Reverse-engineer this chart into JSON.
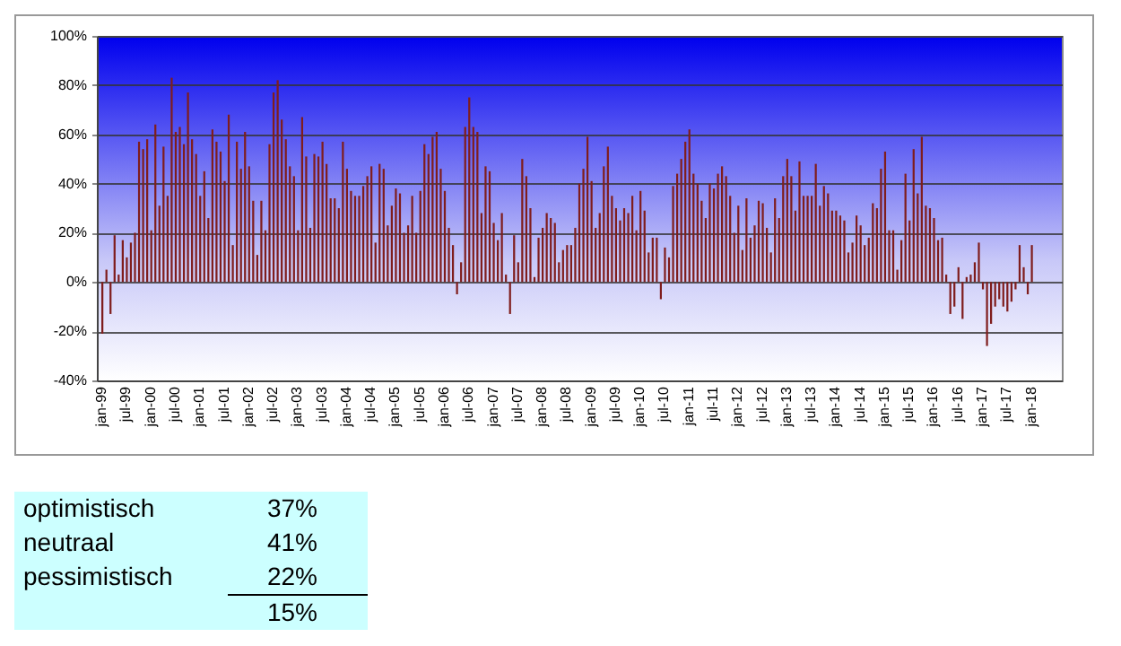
{
  "chart_data": {
    "type": "bar",
    "categories": [
      "jan-99",
      null,
      null,
      null,
      null,
      null,
      "jul-99",
      null,
      null,
      null,
      null,
      null,
      "jan-00",
      null,
      null,
      null,
      null,
      null,
      "jul-00",
      null,
      null,
      null,
      null,
      null,
      "jan-01",
      null,
      null,
      null,
      null,
      null,
      "jul-01",
      null,
      null,
      null,
      null,
      null,
      "jan-02",
      null,
      null,
      null,
      null,
      null,
      "jul-02",
      null,
      null,
      null,
      null,
      null,
      "jan-03",
      null,
      null,
      null,
      null,
      null,
      "jul-03",
      null,
      null,
      null,
      null,
      null,
      "jan-04",
      null,
      null,
      null,
      null,
      null,
      "jul-04",
      null,
      null,
      null,
      null,
      null,
      "jan-05",
      null,
      null,
      null,
      null,
      null,
      "jul-05",
      null,
      null,
      null,
      null,
      null,
      "jan-06",
      null,
      null,
      null,
      null,
      null,
      "jul-06",
      null,
      null,
      null,
      null,
      null,
      "jan-07",
      null,
      null,
      null,
      null,
      null,
      "jul-07",
      null,
      null,
      null,
      null,
      null,
      "jan-08",
      null,
      null,
      null,
      null,
      null,
      "jul-08",
      null,
      null,
      null,
      null,
      null,
      "jan-09",
      null,
      null,
      null,
      null,
      null,
      "jul-09",
      null,
      null,
      null,
      null,
      null,
      "jan-10",
      null,
      null,
      null,
      null,
      null,
      "jul-10",
      null,
      null,
      null,
      null,
      null,
      "jan-11",
      null,
      null,
      null,
      null,
      null,
      "jul-11",
      null,
      null,
      null,
      null,
      null,
      "jan-12",
      null,
      null,
      null,
      null,
      null,
      "jul-12",
      null,
      null,
      null,
      null,
      null,
      "jan-13",
      null,
      null,
      null,
      null,
      null,
      "jul-13",
      null,
      null,
      null,
      null,
      null,
      "jan-14",
      null,
      null,
      null,
      null,
      null,
      "jul-14",
      null,
      null,
      null,
      null,
      null,
      "jan-15",
      null,
      null,
      null,
      null,
      null,
      "jul-15",
      null,
      null,
      null,
      null,
      null,
      "jan-16",
      null,
      null,
      null,
      null,
      null,
      "jul-16",
      null,
      null,
      null,
      null,
      null,
      "jan-17",
      null,
      null,
      null,
      null,
      null,
      "jul-17",
      null,
      null,
      null,
      null,
      null,
      "jan-18",
      null,
      null,
      null,
      null,
      null,
      null
    ],
    "values": [
      -21,
      5,
      -13,
      19,
      3,
      17,
      10,
      16,
      20,
      57,
      54,
      58,
      21,
      64,
      31,
      55,
      35,
      83,
      61,
      63,
      56,
      77,
      58,
      52,
      35,
      45,
      26,
      62,
      57,
      53,
      41,
      68,
      15,
      57,
      46,
      61,
      47,
      33,
      11,
      33,
      21,
      56,
      77,
      82,
      66,
      58,
      47,
      43,
      21,
      67,
      51,
      22,
      52,
      51,
      57,
      48,
      34,
      34,
      30,
      57,
      46,
      37,
      35,
      35,
      39,
      43,
      47,
      16,
      48,
      46,
      23,
      31,
      38,
      36,
      20,
      23,
      35,
      20,
      37,
      56,
      52,
      59,
      61,
      46,
      37,
      22,
      15,
      -5,
      8,
      63,
      75,
      63,
      61,
      28,
      47,
      45,
      24,
      17,
      28,
      3,
      -13,
      19,
      8,
      50,
      43,
      30,
      2,
      18,
      22,
      28,
      26,
      24,
      8,
      13,
      15,
      15,
      22,
      40,
      46,
      59,
      41,
      22,
      28,
      47,
      55,
      35,
      30,
      25,
      30,
      28,
      35,
      21,
      37,
      29,
      12,
      18,
      18,
      -7,
      14,
      10,
      39,
      44,
      50,
      57,
      62,
      44,
      40,
      33,
      26,
      40,
      38,
      44,
      47,
      43,
      35,
      20,
      31,
      13,
      34,
      18,
      23,
      33,
      32,
      22,
      12,
      34,
      26,
      43,
      50,
      43,
      29,
      49,
      35,
      35,
      35,
      48,
      31,
      39,
      36,
      29,
      29,
      27,
      25,
      12,
      16,
      27,
      23,
      15,
      18,
      32,
      30,
      46,
      53,
      21,
      21,
      5,
      17,
      44,
      25,
      54,
      36,
      59,
      31,
      30,
      26,
      17,
      18,
      3,
      -13,
      -10,
      6,
      -15,
      2,
      3,
      8,
      16,
      -3,
      -26,
      -17,
      -10,
      -7,
      -10,
      -12,
      -8,
      -3,
      15,
      6,
      -5,
      15,
      null,
      null,
      null,
      null,
      null,
      null
    ],
    "color": "#7f1d1d",
    "ylim": [
      -40,
      100
    ],
    "yticks": [
      {
        "value": -40,
        "label": "-40%"
      },
      {
        "value": -20,
        "label": "-20%"
      },
      {
        "value": 0,
        "label": "0%"
      },
      {
        "value": 20,
        "label": "20%"
      },
      {
        "value": 40,
        "label": "40%"
      },
      {
        "value": 60,
        "label": "60%"
      },
      {
        "value": 80,
        "label": "80%"
      },
      {
        "value": 100,
        "label": "100%"
      }
    ],
    "grid": "y",
    "annotations": [
      "optimistisch",
      "37%",
      "neutraal",
      "41%",
      "pessimistisch",
      "22%",
      "15%"
    ]
  }
}
